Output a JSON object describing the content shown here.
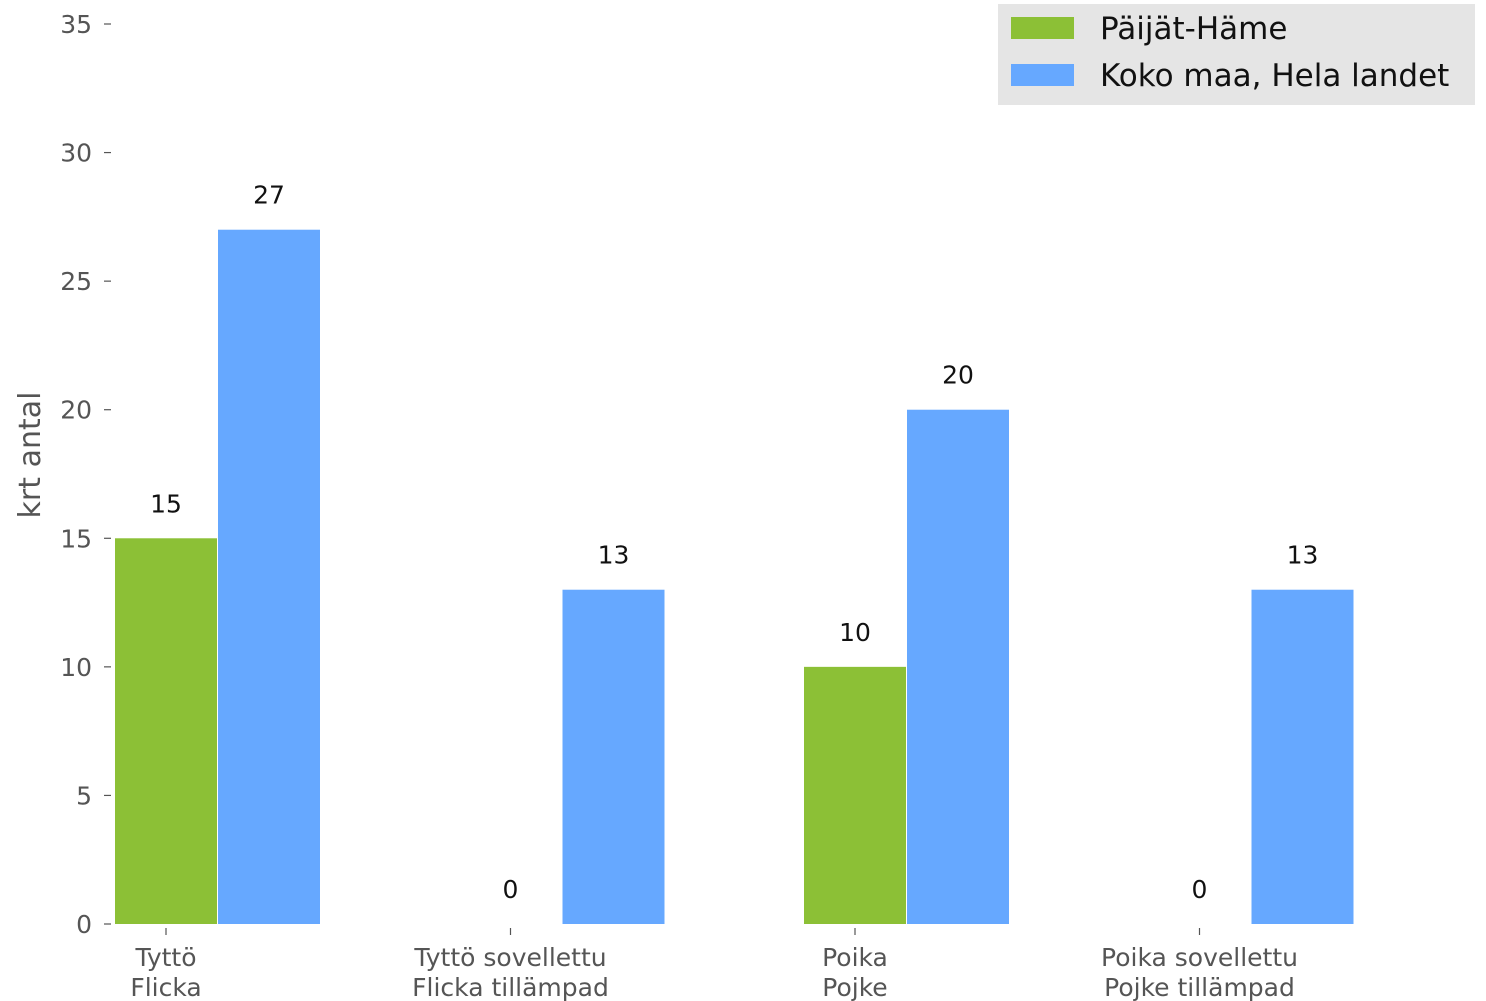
{
  "chart_data": {
    "type": "bar",
    "ylabel": "krt antal",
    "xlabel": "",
    "ylim": [
      0,
      35
    ],
    "yticks": [
      0,
      5,
      10,
      15,
      20,
      25,
      30,
      35
    ],
    "grid": false,
    "legend_position": "top-right",
    "categories": [
      [
        "Tyttö",
        "Flicka"
      ],
      [
        "Tyttö sovellettu",
        "Flicka tillämpad"
      ],
      [
        "Poika",
        "Pojke"
      ],
      [
        "Poika sovellettu",
        "Pojke tillämpad"
      ]
    ],
    "series": [
      {
        "name": "Päijät-Häme",
        "color": "#8cc036",
        "values": [
          15,
          0,
          10,
          0
        ]
      },
      {
        "name": "Koko maa, Hela landet",
        "color": "#66a8ff",
        "values": [
          27,
          13,
          20,
          13
        ]
      }
    ]
  }
}
